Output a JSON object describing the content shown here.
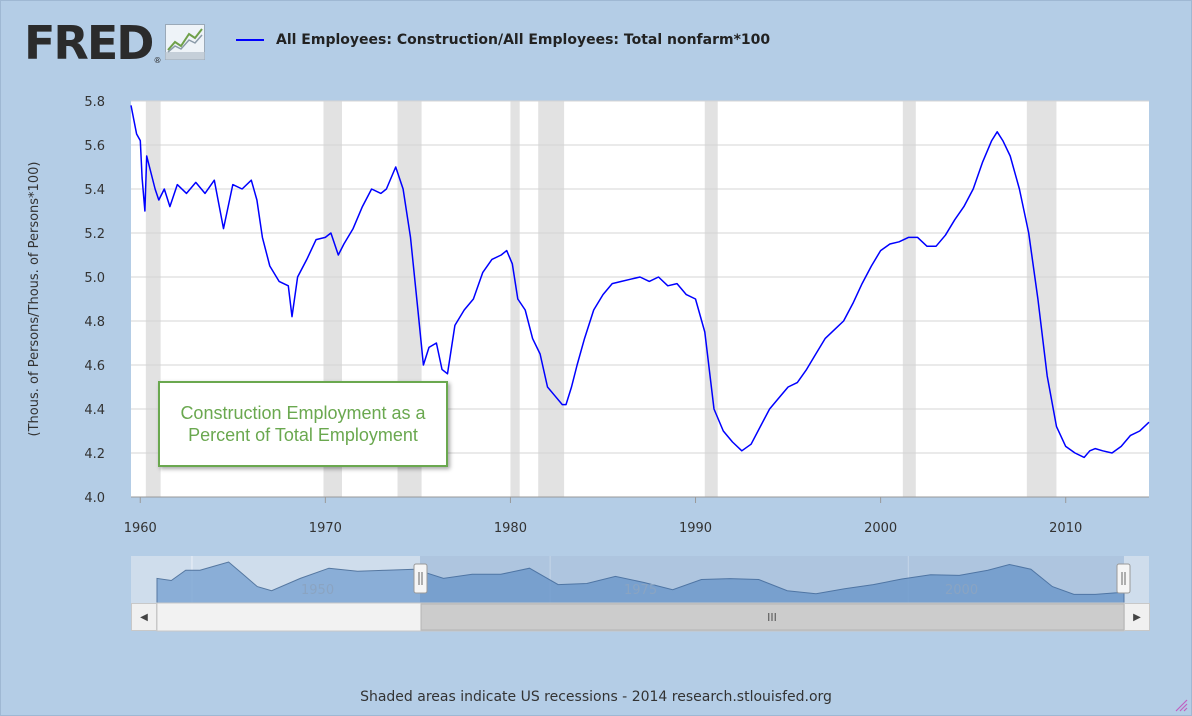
{
  "header": {
    "logo_text": "FRED",
    "logo_mark": "®",
    "legend_label": "All Employees: Construction/All Employees: Total nonfarm*100",
    "legend_color": "#0000ff"
  },
  "annotation": {
    "text": "Construction Employment as a Percent of Total Employment",
    "color": "#6aa84f"
  },
  "navigator": {
    "labels": [
      "1950",
      "1975",
      "2000"
    ],
    "scrollbar_grip": "III",
    "left_arrow": "◀",
    "right_arrow": "▶",
    "handle_glyph": "||"
  },
  "footer": {
    "text": "Shaded areas indicate US recessions - 2014 research.stlouisfed.org"
  },
  "colors": {
    "background": "#b4cde6",
    "plot_bg": "#ffffff",
    "recession": "#e2e2e2",
    "navigator_fill": "#6f9bcb",
    "annotation_border": "#6aa84f"
  },
  "chart_data": {
    "type": "line",
    "title": "",
    "xlabel": "",
    "ylabel": "(Thous. of Persons/Thous. of Persons*100)",
    "xlim": [
      1959.5,
      2014.5
    ],
    "ylim": [
      4.0,
      5.8
    ],
    "x_ticks": [
      "1960",
      "1970",
      "1980",
      "1990",
      "2000",
      "2010"
    ],
    "y_ticks": [
      "4.0",
      "4.2",
      "4.4",
      "4.6",
      "4.8",
      "5.0",
      "5.2",
      "5.4",
      "5.6",
      "5.8"
    ],
    "grid": true,
    "legend": "top",
    "recessions": [
      [
        1960.3,
        1961.1
      ],
      [
        1969.9,
        1970.9
      ],
      [
        1973.9,
        1975.2
      ],
      [
        1980.0,
        1980.5
      ],
      [
        1981.5,
        1982.9
      ],
      [
        1990.5,
        1991.2
      ],
      [
        2001.2,
        2001.9
      ],
      [
        2007.9,
        2009.5
      ]
    ],
    "series": [
      {
        "name": "All Employees: Construction/All Employees: Total nonfarm*100",
        "color": "#0000ff",
        "x": [
          1959.5,
          1959.8,
          1960.0,
          1960.1,
          1960.25,
          1960.35,
          1960.5,
          1960.8,
          1961.0,
          1961.3,
          1961.6,
          1962.0,
          1962.5,
          1963.0,
          1963.5,
          1964.0,
          1964.5,
          1965.0,
          1965.5,
          1966.0,
          1966.3,
          1966.6,
          1967.0,
          1967.5,
          1968.0,
          1968.2,
          1968.5,
          1969.0,
          1969.5,
          1970.0,
          1970.3,
          1970.7,
          1971.0,
          1971.5,
          1972.0,
          1972.5,
          1973.0,
          1973.3,
          1973.8,
          1974.2,
          1974.6,
          1975.0,
          1975.3,
          1975.6,
          1976.0,
          1976.3,
          1976.6,
          1977.0,
          1977.5,
          1978.0,
          1978.5,
          1979.0,
          1979.5,
          1979.8,
          1980.1,
          1980.4,
          1980.8,
          1981.2,
          1981.6,
          1982.0,
          1982.4,
          1982.8,
          1983.0,
          1983.3,
          1983.6,
          1984.0,
          1984.5,
          1985.0,
          1985.5,
          1986.0,
          1986.5,
          1987.0,
          1987.5,
          1988.0,
          1988.5,
          1989.0,
          1989.5,
          1990.0,
          1990.5,
          1991.0,
          1991.5,
          1992.0,
          1992.5,
          1993.0,
          1993.5,
          1994.0,
          1994.5,
          1995.0,
          1995.5,
          1996.0,
          1996.5,
          1997.0,
          1997.5,
          1998.0,
          1998.5,
          1999.0,
          1999.5,
          2000.0,
          2000.5,
          2001.0,
          2001.5,
          2002.0,
          2002.5,
          2003.0,
          2003.5,
          2004.0,
          2004.5,
          2005.0,
          2005.5,
          2006.0,
          2006.3,
          2006.6,
          2007.0,
          2007.5,
          2008.0,
          2008.5,
          2009.0,
          2009.5,
          2010.0,
          2010.5,
          2011.0,
          2011.3,
          2011.6,
          2012.0,
          2012.5,
          2013.0,
          2013.5,
          2014.0,
          2014.5
        ],
        "y": [
          5.78,
          5.65,
          5.62,
          5.45,
          5.3,
          5.55,
          5.5,
          5.4,
          5.35,
          5.4,
          5.32,
          5.42,
          5.38,
          5.43,
          5.38,
          5.44,
          5.22,
          5.42,
          5.4,
          5.44,
          5.35,
          5.18,
          5.05,
          4.98,
          4.96,
          4.82,
          5.0,
          5.08,
          5.17,
          5.18,
          5.2,
          5.1,
          5.15,
          5.22,
          5.32,
          5.4,
          5.38,
          5.4,
          5.5,
          5.4,
          5.18,
          4.85,
          4.6,
          4.68,
          4.7,
          4.58,
          4.56,
          4.78,
          4.85,
          4.9,
          5.02,
          5.08,
          5.1,
          5.12,
          5.06,
          4.9,
          4.85,
          4.72,
          4.65,
          4.5,
          4.46,
          4.42,
          4.42,
          4.5,
          4.6,
          4.72,
          4.85,
          4.92,
          4.97,
          4.98,
          4.99,
          5.0,
          4.98,
          5.0,
          4.96,
          4.97,
          4.92,
          4.9,
          4.75,
          4.4,
          4.3,
          4.25,
          4.21,
          4.24,
          4.32,
          4.4,
          4.45,
          4.5,
          4.52,
          4.58,
          4.65,
          4.72,
          4.76,
          4.8,
          4.88,
          4.97,
          5.05,
          5.12,
          5.15,
          5.16,
          5.18,
          5.18,
          5.14,
          5.14,
          5.19,
          5.26,
          5.32,
          5.4,
          5.52,
          5.62,
          5.66,
          5.62,
          5.55,
          5.4,
          5.2,
          4.9,
          4.55,
          4.32,
          4.23,
          4.2,
          4.18,
          4.21,
          4.22,
          4.21,
          4.2,
          4.23,
          4.28,
          4.3,
          4.34
        ]
      }
    ],
    "navigator": {
      "x": [
        1947.0,
        1948.0,
        1949.0,
        1950.0,
        1951.0,
        1952.0,
        1953.0,
        1954.0,
        1955.0,
        1957.0,
        1959.0,
        1961.0,
        1963.0,
        1965.0,
        1967.0,
        1969.0,
        1971.0,
        1973.0,
        1975.0,
        1977.0,
        1979.0,
        1981.0,
        1983.0,
        1985.0,
        1987.0,
        1989.0,
        1991.0,
        1993.0,
        1995.0,
        1997.0,
        1999.0,
        2001.0,
        2003.0,
        2005.0,
        2006.5,
        2008.0,
        2009.5,
        2011.0,
        2012.5,
        2014.0,
        2014.5
      ],
      "y": [
        5.0,
        4.9,
        5.4,
        5.4,
        5.6,
        5.8,
        5.2,
        4.6,
        4.4,
        5.0,
        5.5,
        5.35,
        5.4,
        5.45,
        5.0,
        5.2,
        5.2,
        5.5,
        4.7,
        4.75,
        5.1,
        4.8,
        4.45,
        4.95,
        4.99,
        4.95,
        4.4,
        4.25,
        4.5,
        4.7,
        4.97,
        5.18,
        5.15,
        5.4,
        5.68,
        5.45,
        4.6,
        4.22,
        4.22,
        4.3,
        4.34
      ],
      "xlim": [
        1947.0,
        2014.5
      ],
      "window": [
        1959.5,
        2014.5
      ]
    }
  }
}
